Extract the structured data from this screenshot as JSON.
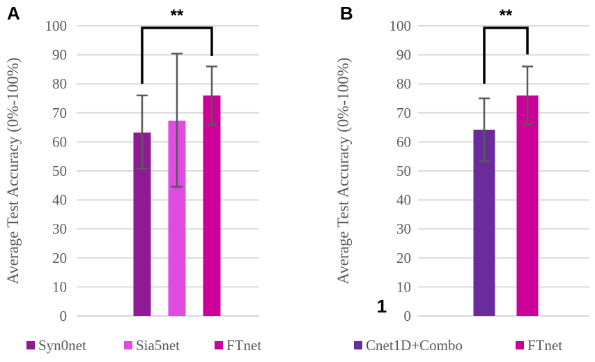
{
  "chart_data": [
    {
      "type": "bar",
      "panel_label": "A",
      "ylabel": "Average Test Accuracy (0%-100%)",
      "ylim": [
        0,
        100
      ],
      "yticks": [
        "0",
        "10",
        "20",
        "30",
        "40",
        "50",
        "60",
        "70",
        "80",
        "90",
        "100"
      ],
      "grid": true,
      "legend_position": "bottom",
      "categories": [
        "Syn0net",
        "Sia5net",
        "FTnet"
      ],
      "values": [
        63.2,
        67.3,
        76.0
      ],
      "error_low": [
        50.7,
        44.5,
        66.0
      ],
      "error_high": [
        76.0,
        90.4,
        86.0
      ],
      "colors": [
        "#8e1a96",
        "#de4ce0",
        "#cc0099"
      ],
      "significance": {
        "from": "Syn0net",
        "to": "FTnet",
        "label": "**"
      }
    },
    {
      "type": "bar",
      "panel_label": "B",
      "ylabel": "Average Test Accuracy (0%-100%)",
      "ylim": [
        0,
        100
      ],
      "yticks": [
        "0",
        "10",
        "20",
        "30",
        "40",
        "50",
        "60",
        "70",
        "80",
        "90",
        "100"
      ],
      "grid": true,
      "legend_position": "bottom",
      "categories": [
        "Cnet1D+Combo",
        "FTnet"
      ],
      "values": [
        64.2,
        76.0
      ],
      "error_low": [
        53.4,
        66.0
      ],
      "error_high": [
        75.0,
        86.0
      ],
      "colors": [
        "#6a2c9c",
        "#cc0099"
      ],
      "significance": {
        "from": "Cnet1D+Combo",
        "to": "FTnet",
        "label": "**"
      },
      "annotation": "1"
    }
  ]
}
